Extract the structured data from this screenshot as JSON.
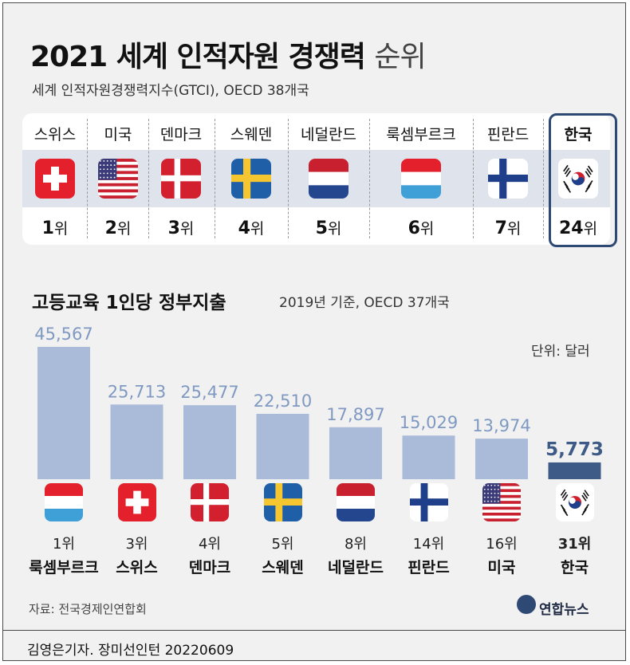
{
  "header": {
    "title_bold": "2021 세계 인적자원 경쟁력",
    "title_light": "순위",
    "subtitle": "세계 인적자원경쟁력지수(GTCI), OECD 38개국"
  },
  "gtci_ranking": [
    {
      "country": "스위스",
      "flag": "switzerland",
      "rank": "1",
      "suffix": "위"
    },
    {
      "country": "미국",
      "flag": "usa",
      "rank": "2",
      "suffix": "위"
    },
    {
      "country": "덴마크",
      "flag": "denmark",
      "rank": "3",
      "suffix": "위"
    },
    {
      "country": "스웨덴",
      "flag": "sweden",
      "rank": "4",
      "suffix": "위"
    },
    {
      "country": "네덜란드",
      "flag": "netherlands",
      "rank": "5",
      "suffix": "위"
    },
    {
      "country": "룩셈부르크",
      "flag": "luxembourg",
      "rank": "6",
      "suffix": "위"
    },
    {
      "country": "핀란드",
      "flag": "finland",
      "rank": "7",
      "suffix": "위"
    },
    {
      "country": "한국",
      "flag": "korea",
      "rank": "24",
      "suffix": "위"
    }
  ],
  "chart": {
    "title": "고등교육 1인당 정부지출",
    "note": "2019년 기준, OECD 37개국",
    "unit": "단위: 달러"
  },
  "chart_data": {
    "type": "bar",
    "title": "고등교육 1인당 정부지출",
    "categories": [
      "룩셈부르크",
      "스위스",
      "덴마크",
      "스웨덴",
      "네덜란드",
      "핀란드",
      "미국",
      "한국"
    ],
    "ranks": [
      "1위",
      "3위",
      "4위",
      "5위",
      "8위",
      "14위",
      "16위",
      "31위"
    ],
    "flags": [
      "luxembourg",
      "switzerland",
      "denmark",
      "sweden",
      "netherlands",
      "finland",
      "usa",
      "korea"
    ],
    "values": [
      45567,
      25713,
      25477,
      22510,
      17897,
      15029,
      13974,
      5773
    ],
    "value_labels": [
      "45,567",
      "25,713",
      "25,477",
      "22,510",
      "17,897",
      "15,029",
      "13,974",
      "5,773"
    ],
    "highlight": "한국",
    "ylim": [
      0,
      45567
    ],
    "colors": {
      "bar": "#a9bbd8",
      "highlight": "#3e5a86",
      "label": "#7f99c2"
    }
  },
  "footer": {
    "source": "자료: 전국경제인연합회",
    "brand": "연합뉴스",
    "byline": "김영은기자. 장미선인턴  20220609"
  }
}
